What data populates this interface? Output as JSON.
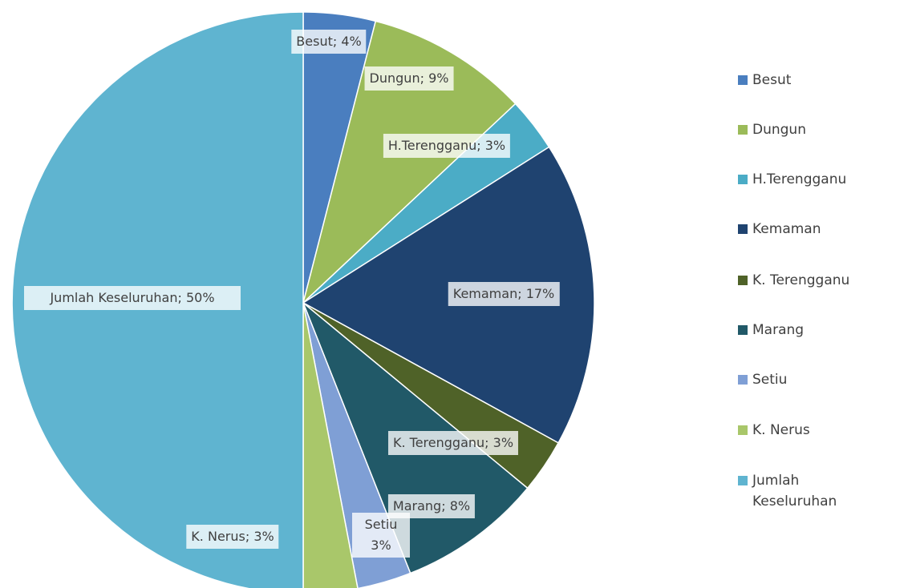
{
  "chart_data": {
    "type": "pie",
    "categories": [
      "Besut",
      "Dungun",
      "H.Terengganu",
      "Kemaman",
      "K. Terengganu",
      "Marang",
      "Setiu",
      "K. Nerus",
      "Jumlah Keseluruhan"
    ],
    "values": [
      4,
      9,
      3,
      17,
      3,
      8,
      3,
      3,
      50
    ],
    "value_labels": [
      "Besut; 4%",
      "Dungun; 9%",
      "H.Terengganu; 3%",
      "Kemaman; 17%",
      "K. Terengganu; 3%",
      "Marang; 8%",
      "Setiu 3%",
      "K. Nerus; 3%",
      "Jumlah Keseluruhan; 50%"
    ],
    "colors": [
      "#4a7ebf",
      "#9bbb59",
      "#4bacc6",
      "#1f4370",
      "#4f6228",
      "#215968",
      "#7f9fd5",
      "#a9c76a",
      "#5fb4d0"
    ],
    "legend": "right"
  }
}
